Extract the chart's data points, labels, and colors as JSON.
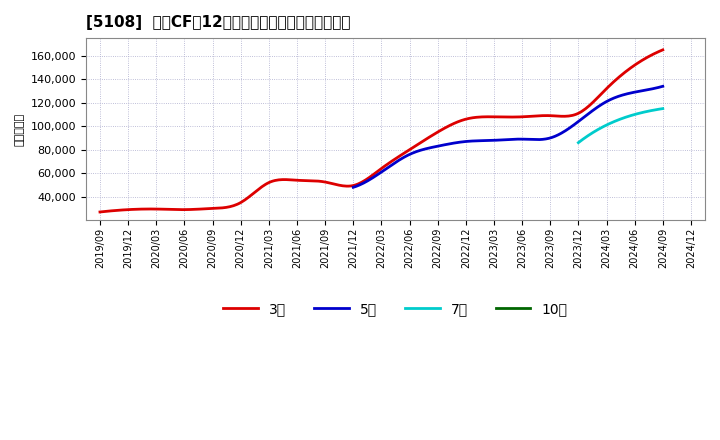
{
  "title": "[5108]  営業CFだ12か月移動合計の標準偏差の推移",
  "ylabel": "（百万円）",
  "background_color": "#ffffff",
  "plot_background": "#ffffff",
  "grid_color": "#aaaacc",
  "ylim": [
    20000,
    175000
  ],
  "yticks": [
    40000,
    60000,
    80000,
    100000,
    120000,
    140000,
    160000
  ],
  "series": {
    "3年": {
      "color": "#dd0000",
      "x": [
        "2019/09",
        "2019/12",
        "2020/03",
        "2020/06",
        "2020/09",
        "2020/12",
        "2021/03",
        "2021/06",
        "2021/09",
        "2021/12",
        "2022/03",
        "2022/06",
        "2022/09",
        "2022/12",
        "2023/03",
        "2023/06",
        "2023/09",
        "2023/12",
        "2024/03",
        "2024/06",
        "2024/09"
      ],
      "y": [
        27000,
        29000,
        29500,
        29000,
        30000,
        35000,
        52000,
        54000,
        52500,
        49500,
        64000,
        80000,
        95000,
        106000,
        108000,
        108000,
        109000,
        111000,
        132000,
        152000,
        165000
      ]
    },
    "5年": {
      "color": "#0000cc",
      "x": [
        "2021/12",
        "2022/03",
        "2022/06",
        "2022/09",
        "2022/12",
        "2023/03",
        "2023/06",
        "2023/09",
        "2023/12",
        "2024/03",
        "2024/06",
        "2024/09"
      ],
      "y": [
        48000,
        61000,
        76000,
        83000,
        87000,
        88000,
        89000,
        90000,
        104000,
        121000,
        129000,
        134000
      ]
    },
    "7年": {
      "color": "#00cccc",
      "x": [
        "2023/12",
        "2024/03",
        "2024/06",
        "2024/09"
      ],
      "y": [
        86000,
        101000,
        110000,
        115000
      ]
    },
    "10年": {
      "color": "#006600",
      "x": [],
      "y": []
    }
  },
  "xticks": [
    "2019/09",
    "2019/12",
    "2020/03",
    "2020/06",
    "2020/09",
    "2020/12",
    "2021/03",
    "2021/06",
    "2021/09",
    "2021/12",
    "2022/03",
    "2022/06",
    "2022/09",
    "2022/12",
    "2023/03",
    "2023/06",
    "2023/09",
    "2023/12",
    "2024/03",
    "2024/06",
    "2024/09",
    "2024/12"
  ],
  "legend_labels": [
    "3年",
    "5年",
    "7年",
    "10年"
  ],
  "legend_colors": [
    "#dd0000",
    "#0000cc",
    "#00cccc",
    "#006600"
  ]
}
